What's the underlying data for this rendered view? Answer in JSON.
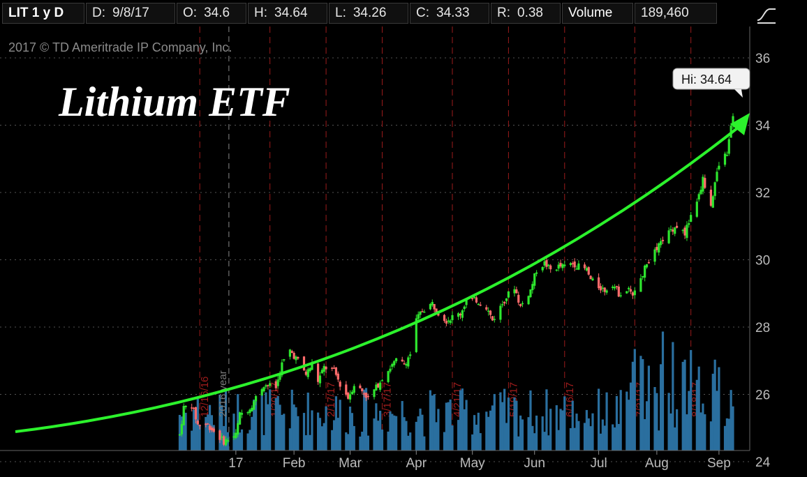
{
  "info_bar": {
    "symbol": "LIT 1 y D",
    "date_label": "D:",
    "date_value": "9/8/17",
    "open_label": "O:",
    "open_value": "34.6",
    "high_label": "H:",
    "high_value": "34.64",
    "low_label": "L:",
    "low_value": "34.26",
    "close_label": "C:",
    "close_value": "34.33",
    "range_label": "R:",
    "range_value": "0.38",
    "volume_label": "Volume",
    "volume_value": "189,460"
  },
  "study_icon": "trend-curve-icon",
  "colors": {
    "background": "#000000",
    "up_candle": "#2ee62e",
    "down_candle": "#ff6b6b",
    "volume": "#2a6f9f",
    "grid": "#555555",
    "earnings_line": "#9b1b1b",
    "trend_arrow": "#2cf22c"
  },
  "chart_data": {
    "type": "candlestick",
    "copyright": "2017 © TD Ameritrade IP Company, Inc.",
    "title": "Lithium ETF",
    "year_marker": "2016 year",
    "hi_label": "Hi: 34.64",
    "y_range": [
      24,
      36.6
    ],
    "y_ticks": [
      24,
      26,
      28,
      30,
      32,
      34,
      36
    ],
    "x_range": [
      "2016-09-15",
      "2017-09-08"
    ],
    "month_labels": [
      {
        "label": "17",
        "date": "2017-01-03"
      },
      {
        "label": "Feb",
        "date": "2017-02-01"
      },
      {
        "label": "Mar",
        "date": "2017-03-01"
      },
      {
        "label": "Apr",
        "date": "2017-04-03"
      },
      {
        "label": "May",
        "date": "2017-05-01"
      },
      {
        "label": "Jun",
        "date": "2017-06-01"
      },
      {
        "label": "Jul",
        "date": "2017-07-03"
      },
      {
        "label": "Aug",
        "date": "2017-08-01"
      },
      {
        "label": "Sep",
        "date": "2017-09-01"
      }
    ],
    "earnings_markers": [
      {
        "date": "2016-12-16",
        "label": "12/16/16"
      },
      {
        "date": "2017-01-20",
        "label": "1/20/17"
      },
      {
        "date": "2017-02-17",
        "label": "2/17/17"
      },
      {
        "date": "2017-03-17",
        "label": "3/17/17"
      },
      {
        "date": "2017-04-21",
        "label": "4/21/17"
      },
      {
        "date": "2017-05-19",
        "label": "5/19/17"
      },
      {
        "date": "2017-06-16",
        "label": "6/16/17"
      },
      {
        "date": "2017-07-21",
        "label": "7/21/17"
      },
      {
        "date": "2017-08-18",
        "label": "8/18/17"
      }
    ],
    "price_path": [
      [
        "2016-12-06",
        24.8
      ],
      [
        "2016-12-08",
        25.6
      ],
      [
        "2016-12-12",
        25.7
      ],
      [
        "2016-12-15",
        25.1
      ],
      [
        "2016-12-20",
        25.1
      ],
      [
        "2016-12-23",
        24.9
      ],
      [
        "2016-12-28",
        24.6
      ],
      [
        "2017-01-03",
        24.8
      ],
      [
        "2017-01-05",
        25.4
      ],
      [
        "2017-01-10",
        25.6
      ],
      [
        "2017-01-17",
        26.3
      ],
      [
        "2017-01-23",
        26.2
      ],
      [
        "2017-01-26",
        26.9
      ],
      [
        "2017-01-30",
        27.3
      ],
      [
        "2017-02-03",
        27.0
      ],
      [
        "2017-02-07",
        26.6
      ],
      [
        "2017-02-10",
        26.9
      ],
      [
        "2017-02-13",
        26.4
      ],
      [
        "2017-02-16",
        26.8
      ],
      [
        "2017-02-21",
        26.7
      ],
      [
        "2017-02-24",
        26.3
      ],
      [
        "2017-02-28",
        25.9
      ],
      [
        "2017-03-03",
        26.3
      ],
      [
        "2017-03-07",
        26.1
      ],
      [
        "2017-03-10",
        25.9
      ],
      [
        "2017-03-14",
        26.2
      ],
      [
        "2017-03-17",
        26.5
      ],
      [
        "2017-03-21",
        26.8
      ],
      [
        "2017-03-24",
        27.0
      ],
      [
        "2017-03-28",
        26.9
      ],
      [
        "2017-03-31",
        27.2
      ],
      [
        "2017-04-03",
        28.2
      ],
      [
        "2017-04-06",
        28.5
      ],
      [
        "2017-04-11",
        28.7
      ],
      [
        "2017-04-13",
        28.5
      ],
      [
        "2017-04-18",
        28.2
      ],
      [
        "2017-04-21",
        28.3
      ],
      [
        "2017-04-25",
        28.4
      ],
      [
        "2017-04-28",
        28.8
      ],
      [
        "2017-05-03",
        28.8
      ],
      [
        "2017-05-08",
        28.6
      ],
      [
        "2017-05-11",
        28.2
      ],
      [
        "2017-05-15",
        28.6
      ],
      [
        "2017-05-18",
        28.9
      ],
      [
        "2017-05-22",
        29.2
      ],
      [
        "2017-05-25",
        28.6
      ],
      [
        "2017-05-30",
        29.1
      ],
      [
        "2017-06-02",
        29.7
      ],
      [
        "2017-06-06",
        29.9
      ],
      [
        "2017-06-09",
        29.7
      ],
      [
        "2017-06-13",
        29.8
      ],
      [
        "2017-06-16",
        29.8
      ],
      [
        "2017-06-20",
        29.9
      ],
      [
        "2017-06-23",
        29.8
      ],
      [
        "2017-06-27",
        29.7
      ],
      [
        "2017-06-29",
        29.4
      ],
      [
        "2017-07-03",
        29.2
      ],
      [
        "2017-07-06",
        29.1
      ],
      [
        "2017-07-10",
        29.3
      ],
      [
        "2017-07-13",
        29.0
      ],
      [
        "2017-07-18",
        29.1
      ],
      [
        "2017-07-21",
        29.0
      ],
      [
        "2017-07-25",
        29.6
      ],
      [
        "2017-07-28",
        30.0
      ],
      [
        "2017-08-01",
        30.3
      ],
      [
        "2017-08-04",
        30.6
      ],
      [
        "2017-08-08",
        30.9
      ],
      [
        "2017-08-11",
        31.0
      ],
      [
        "2017-08-15",
        30.8
      ],
      [
        "2017-08-18",
        31.3
      ],
      [
        "2017-08-22",
        31.9
      ],
      [
        "2017-08-24",
        32.4
      ],
      [
        "2017-08-28",
        31.6
      ],
      [
        "2017-08-30",
        32.3
      ],
      [
        "2017-09-01",
        32.8
      ],
      [
        "2017-09-05",
        33.2
      ],
      [
        "2017-09-07",
        33.9
      ],
      [
        "2017-09-08",
        34.33
      ]
    ]
  }
}
